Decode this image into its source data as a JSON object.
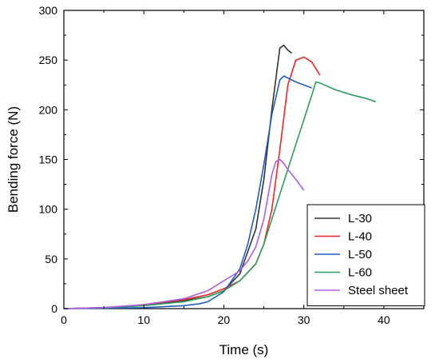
{
  "chart_data": {
    "type": "line",
    "title": "",
    "xlabel": "Time (s)",
    "ylabel": "Bending force (N)",
    "xlim": [
      0,
      45
    ],
    "ylim": [
      0,
      300
    ],
    "xticks": [
      0,
      10,
      20,
      30,
      40
    ],
    "yticks": [
      0,
      50,
      100,
      150,
      200,
      250,
      300
    ],
    "grid": false,
    "legend_position": "bottom-right",
    "series": [
      {
        "name": "L-30",
        "color": "#333333",
        "x": [
          0,
          5,
          10,
          15,
          18,
          20,
          22,
          24,
          25,
          26,
          27,
          27.5,
          28,
          28.5
        ],
        "y": [
          0,
          1,
          3,
          8,
          12,
          18,
          35,
          80,
          130,
          200,
          262,
          265,
          260,
          257
        ]
      },
      {
        "name": "L-40",
        "color": "#e8262a",
        "x": [
          0,
          5,
          10,
          15,
          18,
          20,
          22,
          24,
          25,
          26,
          27,
          28,
          29,
          30,
          31,
          32
        ],
        "y": [
          0,
          1,
          4,
          9,
          14,
          20,
          28,
          45,
          65,
          100,
          160,
          225,
          250,
          253,
          248,
          235
        ]
      },
      {
        "name": "L-50",
        "color": "#1f5fc4",
        "x": [
          0,
          5,
          10,
          15,
          17,
          18,
          20,
          22,
          23,
          24,
          25,
          26,
          27,
          27.5,
          28,
          29,
          30,
          31
        ],
        "y": [
          0,
          0.5,
          1,
          3,
          5,
          7,
          17,
          40,
          65,
          100,
          145,
          195,
          230,
          234,
          232,
          228,
          225,
          222
        ]
      },
      {
        "name": "L-60",
        "color": "#2e9e5c",
        "x": [
          0,
          5,
          10,
          15,
          18,
          20,
          22,
          24,
          25,
          26,
          27,
          28,
          29,
          30,
          31,
          31.5,
          32,
          34,
          36,
          38,
          39
        ],
        "y": [
          0,
          1,
          3,
          7,
          12,
          18,
          28,
          45,
          65,
          90,
          115,
          140,
          165,
          190,
          215,
          228,
          227,
          220,
          215,
          211,
          208
        ]
      },
      {
        "name": "Steel sheet",
        "color": "#b05ee0",
        "x": [
          0,
          5,
          10,
          15,
          18,
          20,
          21,
          22,
          23,
          24,
          25,
          26,
          26.5,
          27,
          27.5,
          28,
          29,
          30
        ],
        "y": [
          0,
          1,
          4,
          10,
          18,
          28,
          33,
          38,
          48,
          62,
          90,
          135,
          148,
          150,
          146,
          140,
          130,
          119
        ]
      }
    ]
  }
}
